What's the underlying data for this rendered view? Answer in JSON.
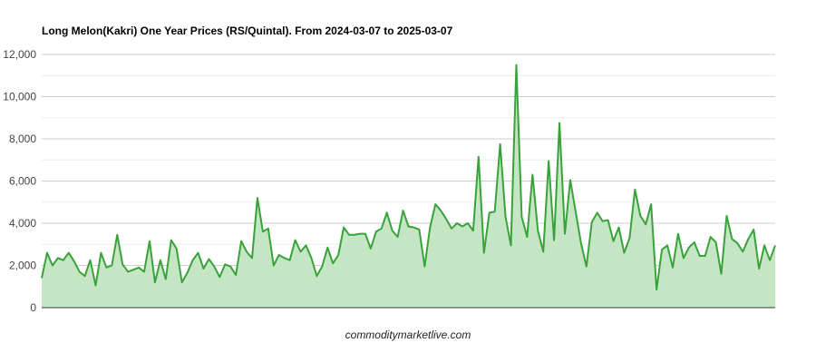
{
  "chart_data": {
    "type": "area",
    "title": "Long Melon(Kakri) One Year Prices (RS/Quintal). From 2024-03-07 to 2025-03-07",
    "caption": "commoditymarketlive.com",
    "xlabel": "",
    "ylabel": "",
    "ylim": [
      0,
      12000
    ],
    "y_ticks": [
      "0",
      "2,000",
      "4,000",
      "6,000",
      "8,000",
      "10,000",
      "12,000"
    ],
    "y_tick_values": [
      0,
      2000,
      4000,
      6000,
      8000,
      10000,
      12000
    ],
    "grid": true,
    "legend": "none",
    "colors": {
      "line": "#3aa23a",
      "fill": "#c5e6c5"
    },
    "series": [
      {
        "values": [
          1400,
          2600,
          2000,
          2350,
          2250,
          2600,
          2200,
          1700,
          1500,
          2250,
          1050,
          2600,
          1900,
          2000,
          3450,
          2050,
          1700,
          1800,
          1900,
          1700,
          3150,
          1200,
          2250,
          1350,
          3200,
          2800,
          1200,
          1650,
          2250,
          2600,
          1850,
          2300,
          1950,
          1450,
          2050,
          1950,
          1550,
          3150,
          2650,
          2350,
          5200,
          3600,
          3750,
          2000,
          2500,
          2350,
          2250,
          3200,
          2650,
          2950,
          2350,
          1500,
          1950,
          2850,
          2100,
          2500,
          3800,
          3450,
          3450,
          3500,
          3500,
          2800,
          3600,
          3750,
          4500,
          3650,
          3350,
          4600,
          3850,
          3800,
          3700,
          1950,
          3800,
          4900,
          4600,
          4200,
          3750,
          4000,
          3850,
          4000,
          3650,
          7150,
          2600,
          4500,
          4550,
          7750,
          4300,
          2950,
          11500,
          4300,
          3350,
          6300,
          3650,
          2650,
          6950,
          3200,
          8750,
          3500,
          6050,
          4550,
          3050,
          1950,
          4050,
          4500,
          4100,
          4150,
          3150,
          3800,
          2600,
          3300,
          5600,
          4350,
          3950,
          4900,
          850,
          2750,
          2950,
          1900,
          3500,
          2350,
          2850,
          3100,
          2450,
          2450,
          3350,
          3100,
          1600,
          4350,
          3250,
          3050,
          2650,
          3250,
          3700,
          1850,
          2950,
          2250,
          2950
        ]
      }
    ]
  }
}
